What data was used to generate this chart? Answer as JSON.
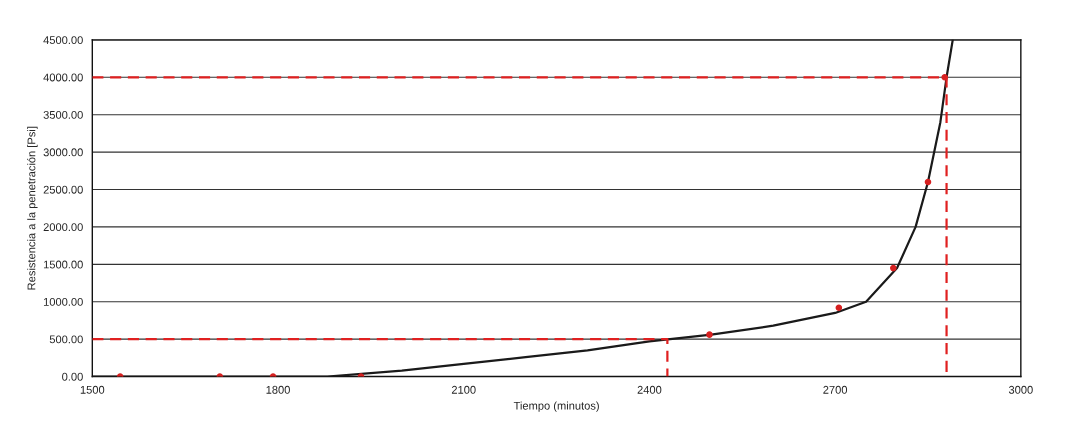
{
  "chart_data": {
    "type": "line",
    "xlabel": "Tiempo (minutos)",
    "ylabel": "Resistencia a la penetración [Psi]",
    "xlim": [
      1500,
      3000
    ],
    "xticks": [
      1500,
      1800,
      2100,
      2400,
      2700,
      3000
    ],
    "ylim": [
      0,
      4500
    ],
    "yticks": [
      {
        "value": 0,
        "label": "0.00"
      },
      {
        "value": 500,
        "label": "500.00"
      },
      {
        "value": 1000,
        "label": "1000.00"
      },
      {
        "value": 1500,
        "label": "1500.00"
      },
      {
        "value": 2000,
        "label": "2000.00"
      },
      {
        "value": 2500,
        "label": "2500.00"
      },
      {
        "value": 3000,
        "label": "3000.00"
      },
      {
        "value": 3500,
        "label": "3500.00"
      },
      {
        "value": 4000,
        "label": "4000.00"
      },
      {
        "value": 4500,
        "label": "4500.00"
      }
    ],
    "grid": "y",
    "series": [
      {
        "color": "#1a1a1a",
        "line_style": "solid",
        "marker": "none",
        "x": [
          1500,
          1880,
          2000,
          2100,
          2200,
          2300,
          2400,
          2500,
          2600,
          2700,
          2750,
          2800,
          2830,
          2850,
          2870,
          2880,
          2890
        ],
        "values": [
          0,
          0,
          80,
          170,
          260,
          350,
          470,
          560,
          680,
          850,
          1000,
          1450,
          2000,
          2600,
          3400,
          4000,
          4500
        ]
      },
      {
        "type": "scatter",
        "color": "#d62020",
        "marker": "circle",
        "x": [
          1545,
          1706,
          1792,
          1934,
          2497,
          2706,
          2794,
          2850,
          2877
        ],
        "values": [
          0,
          0,
          0,
          0,
          560,
          920,
          1450,
          2600,
          4000
        ]
      },
      {
        "type": "line",
        "color": "#e02020",
        "line_style": "dashed",
        "marker": "none",
        "x": [
          1500,
          2429,
          2429
        ],
        "values": [
          500,
          500,
          0
        ]
      },
      {
        "type": "line",
        "color": "#e02020",
        "line_style": "dashed",
        "marker": "none",
        "x": [
          1500,
          2880,
          2880
        ],
        "values": [
          4000,
          4000,
          0
        ]
      }
    ]
  }
}
